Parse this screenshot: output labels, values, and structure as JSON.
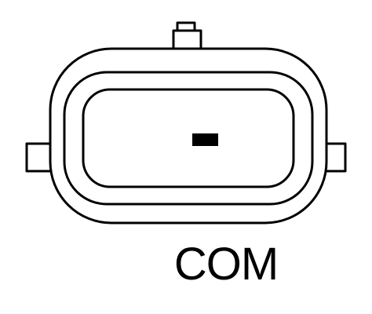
{
  "connector": {
    "pin_label": "COM",
    "stroke_color": "#000000",
    "fill_color": "#ffffff",
    "pin_color": "#000000"
  }
}
